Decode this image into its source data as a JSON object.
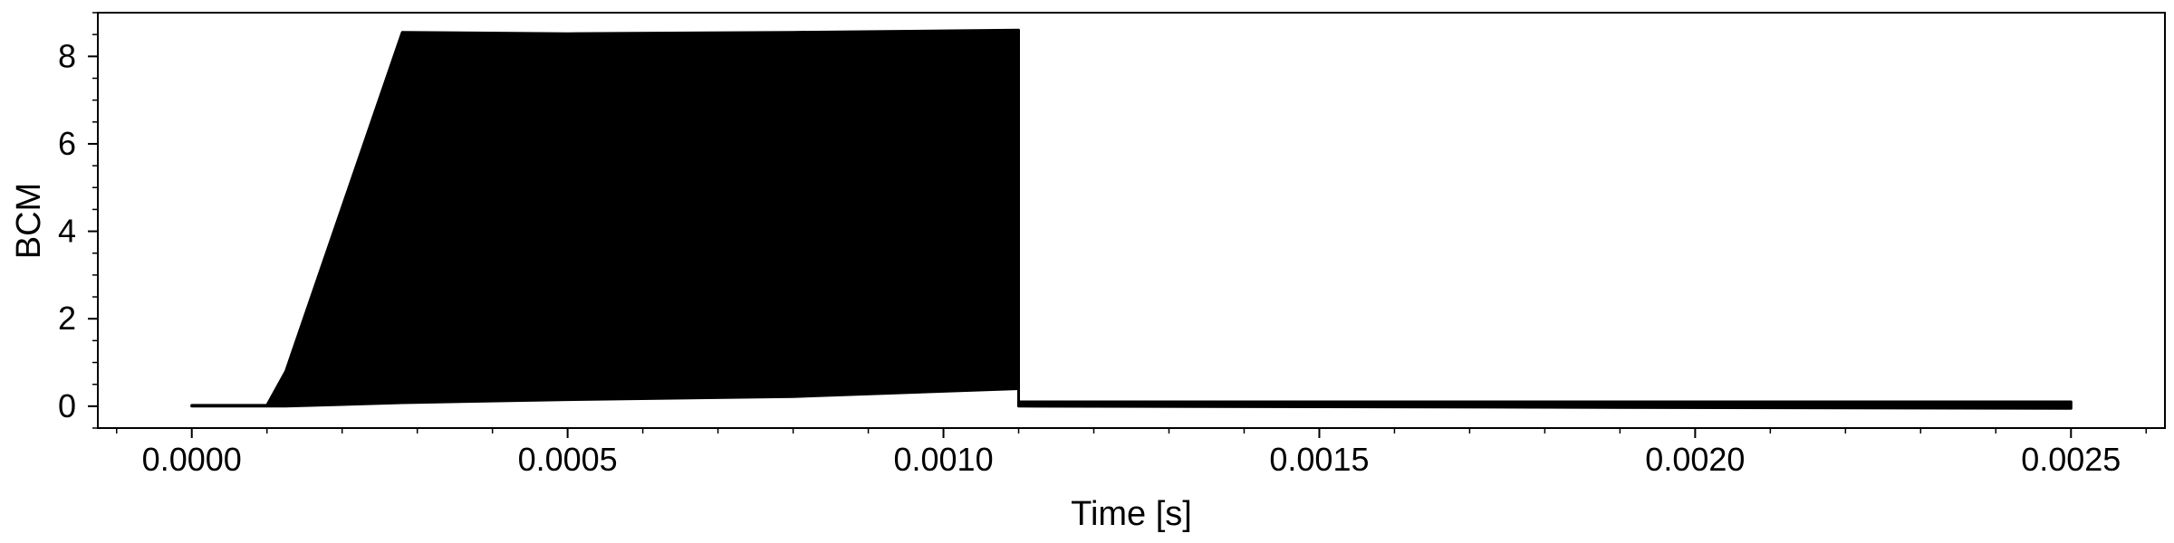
{
  "chart_data": {
    "type": "area",
    "title": "",
    "xlabel": "Time [s]",
    "ylabel": "BCM",
    "xlim": [
      -0.000125,
      0.002625
    ],
    "ylim": [
      -0.5,
      9.0
    ],
    "xticks": [
      0.0,
      0.0005,
      0.001,
      0.0015,
      0.002,
      0.0025
    ],
    "xtick_labels": [
      "0.0000",
      "0.0005",
      "0.0010",
      "0.0015",
      "0.0020",
      "0.0025"
    ],
    "yticks": [
      0,
      2,
      4,
      6,
      8
    ],
    "ytick_labels": [
      "0",
      "2",
      "4",
      "6",
      "8"
    ],
    "grid": false,
    "legend": "none",
    "color": "#000000",
    "series": [
      {
        "upper_envelope": {
          "x": [
            0.0,
            0.0001,
            0.000125,
            0.00028,
            0.0005,
            0.0008,
            0.0011,
            0.0011,
            0.0025
          ],
          "y": [
            0.02,
            0.02,
            0.8,
            8.55,
            8.52,
            8.55,
            8.6,
            0.1,
            0.1
          ]
        },
        "lower_envelope": {
          "x": [
            0.0,
            0.000125,
            0.00028,
            0.0005,
            0.0008,
            0.0011,
            0.0011,
            0.0025
          ],
          "y": [
            0.0,
            0.0,
            0.08,
            0.15,
            0.22,
            0.4,
            0.0,
            -0.05
          ]
        }
      }
    ]
  }
}
